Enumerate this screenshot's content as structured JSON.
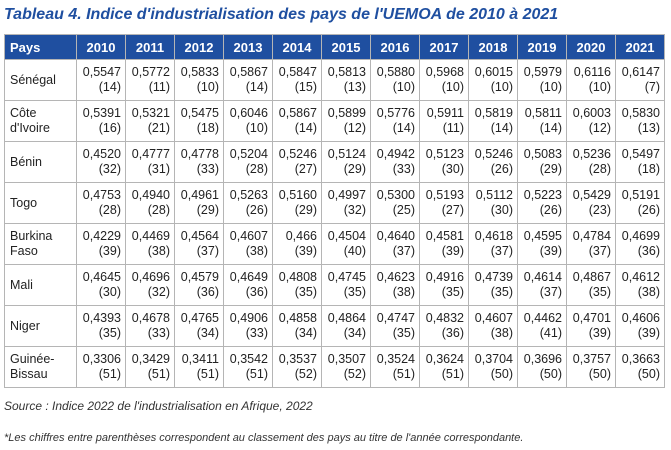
{
  "title": "Tableau 4. Indice d'industrialisation des pays de l'UEMOA de 2010 à 2021",
  "table": {
    "country_header": "Pays",
    "years": [
      "2010",
      "2011",
      "2012",
      "2013",
      "2014",
      "2015",
      "2016",
      "2017",
      "2018",
      "2019",
      "2020",
      "2021"
    ],
    "rows": [
      {
        "country": "Sénégal",
        "cells": [
          {
            "v": "0,5547",
            "r": "(14)"
          },
          {
            "v": "0,5772",
            "r": "(11)"
          },
          {
            "v": "0,5833",
            "r": "(10)"
          },
          {
            "v": "0,5867",
            "r": "(14)"
          },
          {
            "v": "0,5847",
            "r": "(15)"
          },
          {
            "v": "0,5813",
            "r": "(13)"
          },
          {
            "v": "0,5880",
            "r": "(10)"
          },
          {
            "v": "0,5968",
            "r": "(10)"
          },
          {
            "v": "0,6015",
            "r": "(10)"
          },
          {
            "v": "0,5979",
            "r": "(10)"
          },
          {
            "v": "0,6116",
            "r": "(10)"
          },
          {
            "v": "0,6147",
            "r": "(7)"
          }
        ]
      },
      {
        "country": "Côte d'Ivoire",
        "cells": [
          {
            "v": "0,5391",
            "r": "(16)"
          },
          {
            "v": "0,5321",
            "r": "(21)"
          },
          {
            "v": "0,5475",
            "r": "(18)"
          },
          {
            "v": "0,6046",
            "r": "(10)"
          },
          {
            "v": "0,5867",
            "r": "(14)"
          },
          {
            "v": "0,5899",
            "r": "(12)"
          },
          {
            "v": "0,5776",
            "r": "(14)"
          },
          {
            "v": "0,5911",
            "r": "(11)"
          },
          {
            "v": "0,5819",
            "r": "(14)"
          },
          {
            "v": "0,5811",
            "r": "(14)"
          },
          {
            "v": "0,6003",
            "r": "(12)"
          },
          {
            "v": "0,5830",
            "r": "(13)"
          }
        ]
      },
      {
        "country": "Bénin",
        "cells": [
          {
            "v": "0,4520",
            "r": "(32)"
          },
          {
            "v": "0,4777",
            "r": "(31)"
          },
          {
            "v": "0,4778",
            "r": "(33)"
          },
          {
            "v": "0,5204",
            "r": "(28)"
          },
          {
            "v": "0,5246",
            "r": "(27)"
          },
          {
            "v": "0,5124",
            "r": "(29)"
          },
          {
            "v": "0,4942",
            "r": "(33)"
          },
          {
            "v": "0,5123",
            "r": "(30)"
          },
          {
            "v": "0,5246",
            "r": "(26)"
          },
          {
            "v": "0,5083",
            "r": "(29)"
          },
          {
            "v": "0,5236",
            "r": "(28)"
          },
          {
            "v": "0,5497",
            "r": "(18)"
          }
        ]
      },
      {
        "country": "Togo",
        "cells": [
          {
            "v": "0,4753",
            "r": "(28)"
          },
          {
            "v": "0,4940",
            "r": "(28)"
          },
          {
            "v": "0,4961",
            "r": "(29)"
          },
          {
            "v": "0,5263",
            "r": "(26)"
          },
          {
            "v": "0,5160",
            "r": "(29)"
          },
          {
            "v": "0,4997",
            "r": "(32)"
          },
          {
            "v": "0,5300",
            "r": "(25)"
          },
          {
            "v": "0,5193",
            "r": "(27)"
          },
          {
            "v": "0,5112",
            "r": "(30)"
          },
          {
            "v": "0,5223",
            "r": "(26)"
          },
          {
            "v": "0,5429",
            "r": "(23)"
          },
          {
            "v": "0,5191",
            "r": "(26)"
          }
        ]
      },
      {
        "country": "Burkina Faso",
        "cells": [
          {
            "v": "0,4229",
            "r": "(39)"
          },
          {
            "v": "0,4469",
            "r": "(38)"
          },
          {
            "v": "0,4564",
            "r": "(37)"
          },
          {
            "v": "0,4607",
            "r": "(38)"
          },
          {
            "v": "0,466",
            "r": "(39)"
          },
          {
            "v": "0,4504",
            "r": "(40)"
          },
          {
            "v": "0,4640",
            "r": "(37)"
          },
          {
            "v": "0,4581",
            "r": "(39)"
          },
          {
            "v": "0,4618",
            "r": "(37)"
          },
          {
            "v": "0,4595",
            "r": "(39)"
          },
          {
            "v": "0,4784",
            "r": "(37)"
          },
          {
            "v": "0,4699",
            "r": "(36)"
          }
        ]
      },
      {
        "country": "Mali",
        "cells": [
          {
            "v": "0,4645",
            "r": "(30)"
          },
          {
            "v": "0,4696",
            "r": "(32)"
          },
          {
            "v": "0,4579",
            "r": "(36)"
          },
          {
            "v": "0,4649",
            "r": "(36)"
          },
          {
            "v": "0,4808",
            "r": "(35)"
          },
          {
            "v": "0,4745",
            "r": "(35)"
          },
          {
            "v": "0,4623",
            "r": "(38)"
          },
          {
            "v": "0,4916",
            "r": "(35)"
          },
          {
            "v": "0,4739",
            "r": "(35)"
          },
          {
            "v": "0,4614",
            "r": "(37)"
          },
          {
            "v": "0,4867",
            "r": "(35)"
          },
          {
            "v": "0,4612",
            "r": "(38)"
          }
        ]
      },
      {
        "country": "Niger",
        "cells": [
          {
            "v": "0,4393",
            "r": "(35)"
          },
          {
            "v": "0,4678",
            "r": "(33)"
          },
          {
            "v": "0,4765",
            "r": "(34)"
          },
          {
            "v": "0,4906",
            "r": "(33)"
          },
          {
            "v": "0,4858",
            "r": "(34)"
          },
          {
            "v": "0,4864",
            "r": "(34)"
          },
          {
            "v": "0,4747",
            "r": "(35)"
          },
          {
            "v": "0,4832",
            "r": "(36)"
          },
          {
            "v": "0,4607",
            "r": "(38)"
          },
          {
            "v": "0,4462",
            "r": "(41)"
          },
          {
            "v": "0,4701",
            "r": "(39)"
          },
          {
            "v": "0,4606",
            "r": "(39)"
          }
        ]
      },
      {
        "country": "Guinée-Bissau",
        "cells": [
          {
            "v": "0,3306",
            "r": "(51)"
          },
          {
            "v": "0,3429",
            "r": "(51)"
          },
          {
            "v": "0,3411",
            "r": "(51)"
          },
          {
            "v": "0,3542",
            "r": "(51)"
          },
          {
            "v": "0,3537",
            "r": "(52)"
          },
          {
            "v": "0,3507",
            "r": "(52)"
          },
          {
            "v": "0,3524",
            "r": "(51)"
          },
          {
            "v": "0,3624",
            "r": "(51)"
          },
          {
            "v": "0,3704",
            "r": "(50)"
          },
          {
            "v": "0,3696",
            "r": "(50)"
          },
          {
            "v": "0,3757",
            "r": "(50)"
          },
          {
            "v": "0,3663",
            "r": "(50)"
          }
        ]
      }
    ]
  },
  "source": "Source : Indice 2022 de l'industrialisation en Afrique, 2022",
  "note": "*Les chiffres entre parenthèses correspondent au classement des pays au titre de l'année correspondante.",
  "colors": {
    "header_bg": "#1f4fa0",
    "title": "#1f4fa0"
  }
}
